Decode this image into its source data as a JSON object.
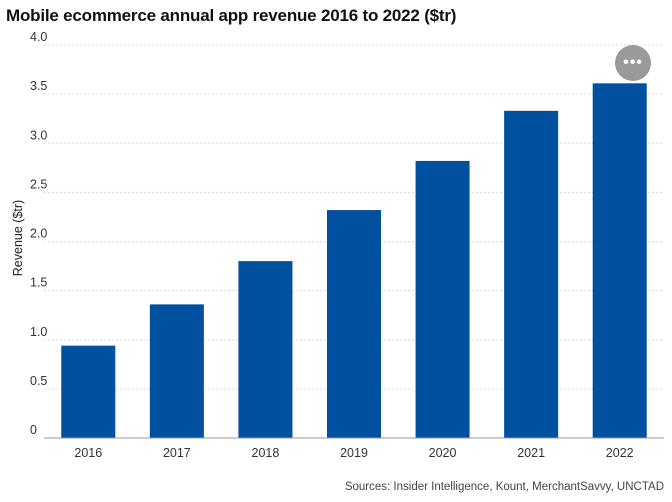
{
  "chart_data": {
    "type": "bar",
    "title": "Mobile ecommerce annual app revenue 2016 to 2022 ($tr)",
    "xlabel": "",
    "ylabel": "Revenue ($tr)",
    "categories": [
      "2016",
      "2017",
      "2018",
      "2019",
      "2020",
      "2021",
      "2022"
    ],
    "values": [
      0.94,
      1.36,
      1.8,
      2.32,
      2.82,
      3.33,
      3.61
    ],
    "ylim": [
      0,
      4.0
    ],
    "yticks": [
      0,
      0.5,
      1.0,
      1.5,
      2.0,
      2.5,
      3.0,
      3.5,
      4.0
    ],
    "ytick_labels": [
      "0",
      "0.5",
      "1.0",
      "1.5",
      "2.0",
      "2.5",
      "3.0",
      "3.5",
      "4.0"
    ],
    "grid": true,
    "bar_color": "#0050a0",
    "source": "Sources: Insider Intelligence, Kount, MerchantSavvy, UNCTAD"
  },
  "more_button": {
    "label": "•••",
    "icon": "more-dots-icon"
  }
}
